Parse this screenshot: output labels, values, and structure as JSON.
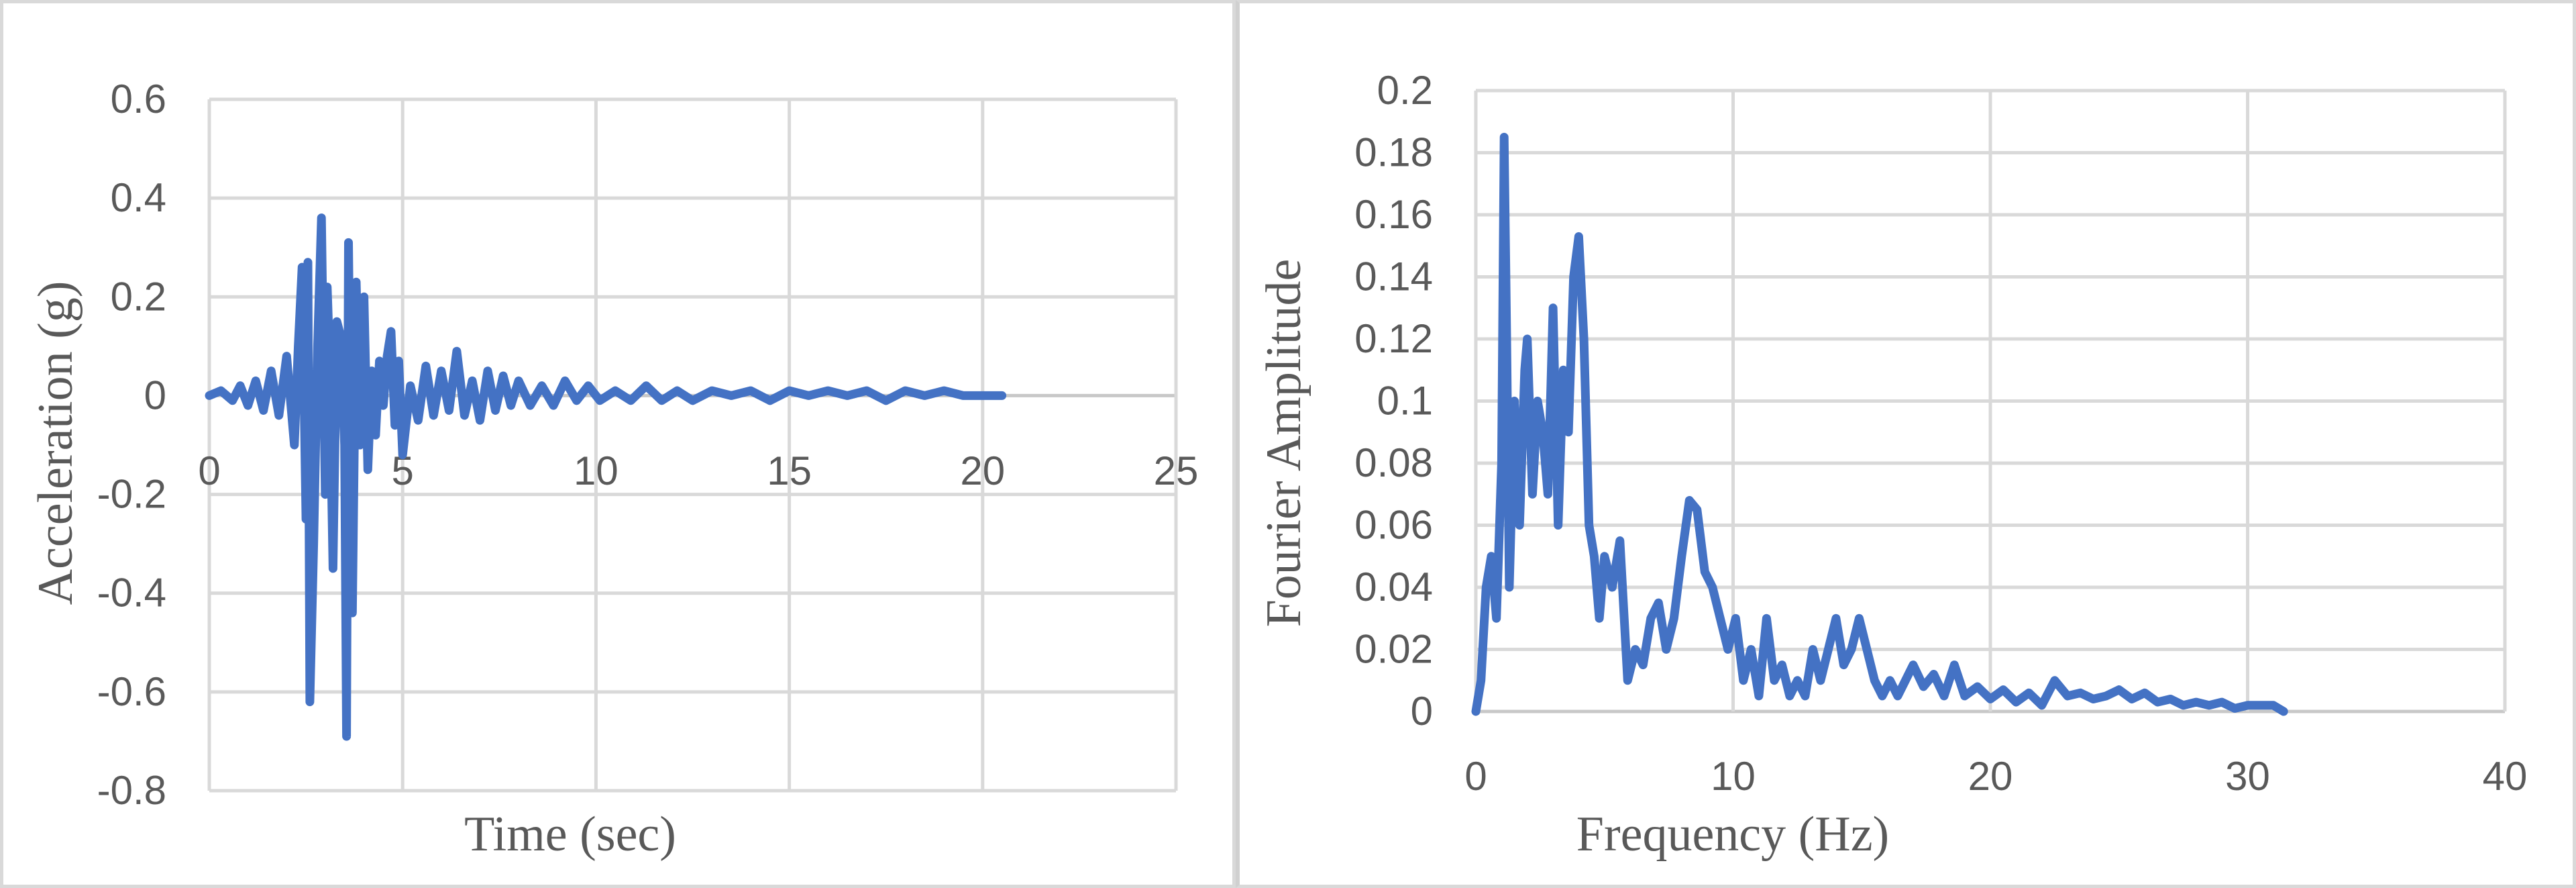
{
  "colors": {
    "series": "#4472c4",
    "grid": "#d9d9d9",
    "text": "#595959"
  },
  "chart_data": [
    {
      "type": "line",
      "title": "",
      "xlabel": "Time (sec)",
      "ylabel": "Acceleration (g)",
      "xlim": [
        0,
        25
      ],
      "ylim": [
        -0.8,
        0.6
      ],
      "x_ticks": [
        0,
        5,
        10,
        15,
        20,
        25
      ],
      "y_ticks": [
        0.6,
        0.4,
        0.2,
        0,
        -0.2,
        -0.4,
        -0.6,
        -0.8
      ],
      "grid": true,
      "legend": "none",
      "series": [
        {
          "x": [
            0,
            0.3,
            0.6,
            0.8,
            1.0,
            1.2,
            1.4,
            1.6,
            1.8,
            2.0,
            2.2,
            2.3,
            2.4,
            2.5,
            2.55,
            2.6,
            2.7,
            2.8,
            2.9,
            3.0,
            3.05,
            3.1,
            3.2,
            3.3,
            3.4,
            3.5,
            3.55,
            3.6,
            3.7,
            3.8,
            3.9,
            4.0,
            4.1,
            4.2,
            4.3,
            4.4,
            4.5,
            4.6,
            4.7,
            4.8,
            4.9,
            5.0,
            5.2,
            5.4,
            5.6,
            5.8,
            6.0,
            6.2,
            6.4,
            6.6,
            6.8,
            7.0,
            7.2,
            7.4,
            7.6,
            7.8,
            8.0,
            8.3,
            8.6,
            8.9,
            9.2,
            9.5,
            9.8,
            10.1,
            10.5,
            10.9,
            11.3,
            11.7,
            12.1,
            12.5,
            13.0,
            13.5,
            14.0,
            14.5,
            15.0,
            15.5,
            16.0,
            16.5,
            17.0,
            17.5,
            18.0,
            18.5,
            19.0,
            19.5,
            20.0,
            20.5
          ],
          "y": [
            0,
            0.01,
            -0.01,
            0.02,
            -0.02,
            0.03,
            -0.03,
            0.05,
            -0.04,
            0.08,
            -0.1,
            0.1,
            0.26,
            -0.25,
            0.27,
            -0.62,
            -0.3,
            0.1,
            0.36,
            -0.2,
            0.22,
            0.1,
            -0.35,
            0.15,
            0.12,
            -0.1,
            -0.69,
            0.31,
            -0.44,
            0.23,
            -0.1,
            0.2,
            -0.15,
            0.05,
            -0.08,
            0.07,
            -0.02,
            0.08,
            0.13,
            -0.06,
            0.07,
            -0.12,
            0.02,
            -0.05,
            0.06,
            -0.04,
            0.05,
            -0.03,
            0.09,
            -0.04,
            0.03,
            -0.05,
            0.05,
            -0.03,
            0.04,
            -0.02,
            0.03,
            -0.02,
            0.02,
            -0.02,
            0.03,
            -0.01,
            0.02,
            -0.01,
            0.01,
            -0.01,
            0.02,
            -0.01,
            0.01,
            -0.01,
            0.01,
            0,
            0.01,
            -0.01,
            0.01,
            0,
            0.01,
            0,
            0.01,
            -0.01,
            0.01,
            0,
            0.01,
            0,
            0,
            0
          ]
        }
      ]
    },
    {
      "type": "line",
      "title": "",
      "xlabel": "Frequency (Hz)",
      "ylabel": "Fourier Amplitude",
      "xlim": [
        0,
        40
      ],
      "ylim": [
        0,
        0.2
      ],
      "x_ticks": [
        0,
        10,
        20,
        30,
        40
      ],
      "y_ticks": [
        0.2,
        0.18,
        0.16,
        0.14,
        0.12,
        0.1,
        0.08,
        0.06,
        0.04,
        0.02,
        0
      ],
      "grid": true,
      "legend": "none",
      "series": [
        {
          "x": [
            0,
            0.2,
            0.4,
            0.6,
            0.8,
            1.0,
            1.1,
            1.2,
            1.3,
            1.5,
            1.7,
            1.9,
            2.0,
            2.2,
            2.4,
            2.6,
            2.8,
            3.0,
            3.2,
            3.4,
            3.6,
            3.8,
            4.0,
            4.2,
            4.4,
            4.6,
            4.8,
            5.0,
            5.3,
            5.6,
            5.9,
            6.2,
            6.5,
            6.8,
            7.1,
            7.4,
            7.7,
            8.0,
            8.3,
            8.6,
            8.9,
            9.2,
            9.5,
            9.8,
            10.1,
            10.4,
            10.7,
            11.0,
            11.3,
            11.6,
            11.9,
            12.2,
            12.5,
            12.8,
            13.1,
            13.4,
            13.7,
            14.0,
            14.3,
            14.6,
            14.9,
            15.2,
            15.5,
            15.8,
            16.1,
            16.4,
            16.7,
            17.0,
            17.4,
            17.8,
            18.2,
            18.6,
            19.0,
            19.5,
            20.0,
            20.5,
            21.0,
            21.5,
            22.0,
            22.5,
            23.0,
            23.5,
            24.0,
            24.5,
            25.0,
            25.5,
            26.0,
            26.5,
            27.0,
            27.5,
            28.0,
            28.5,
            29.0,
            29.5,
            30.0,
            30.5,
            31.0,
            31.4
          ],
          "y": [
            0,
            0.01,
            0.04,
            0.05,
            0.03,
            0.08,
            0.185,
            0.12,
            0.04,
            0.1,
            0.06,
            0.11,
            0.12,
            0.07,
            0.1,
            0.09,
            0.07,
            0.13,
            0.06,
            0.11,
            0.09,
            0.14,
            0.153,
            0.12,
            0.06,
            0.05,
            0.03,
            0.05,
            0.04,
            0.055,
            0.01,
            0.02,
            0.015,
            0.03,
            0.035,
            0.02,
            0.03,
            0.05,
            0.068,
            0.065,
            0.045,
            0.04,
            0.03,
            0.02,
            0.03,
            0.01,
            0.02,
            0.005,
            0.03,
            0.01,
            0.015,
            0.005,
            0.01,
            0.005,
            0.02,
            0.01,
            0.02,
            0.03,
            0.015,
            0.02,
            0.03,
            0.02,
            0.01,
            0.005,
            0.01,
            0.005,
            0.01,
            0.015,
            0.008,
            0.012,
            0.005,
            0.015,
            0.005,
            0.008,
            0.004,
            0.007,
            0.003,
            0.006,
            0.002,
            0.01,
            0.005,
            0.006,
            0.004,
            0.005,
            0.007,
            0.004,
            0.006,
            0.003,
            0.004,
            0.002,
            0.003,
            0.002,
            0.003,
            0.001,
            0.002,
            0.002,
            0.002,
            0
          ]
        }
      ]
    }
  ]
}
